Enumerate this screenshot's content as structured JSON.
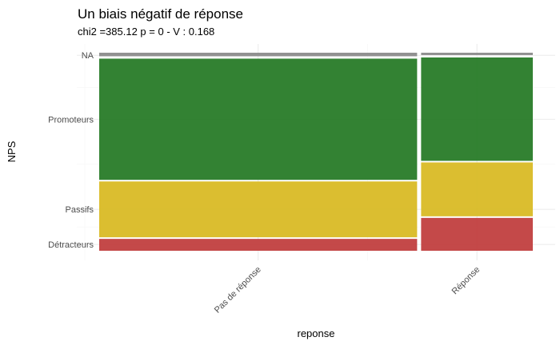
{
  "chart_data": {
    "type": "mosaic",
    "title": "Un biais négatif de réponse",
    "subtitle": "chi2 =385.12 p = 0 - V : 0.168",
    "xlabel": "reponse",
    "ylabel": "NPS",
    "categories": [
      "Pas de réponse",
      "Réponse"
    ],
    "category_widths": [
      0.74,
      0.26
    ],
    "levels": [
      "Détracteurs",
      "Passifs",
      "Promoteurs",
      "NA"
    ],
    "series": [
      {
        "name": "Détracteurs",
        "color": "#bf3a3a",
        "values": [
          0.064,
          0.17
        ]
      },
      {
        "name": "Passifs",
        "color": "#d8b81e",
        "values": [
          0.29,
          0.28
        ]
      },
      {
        "name": "Promoteurs",
        "color": "#227722",
        "values": [
          0.62,
          0.53
        ]
      },
      {
        "name": "NA",
        "color": "#888888",
        "values": [
          0.026,
          0.02
        ]
      }
    ],
    "grid": true,
    "legend": "none"
  }
}
